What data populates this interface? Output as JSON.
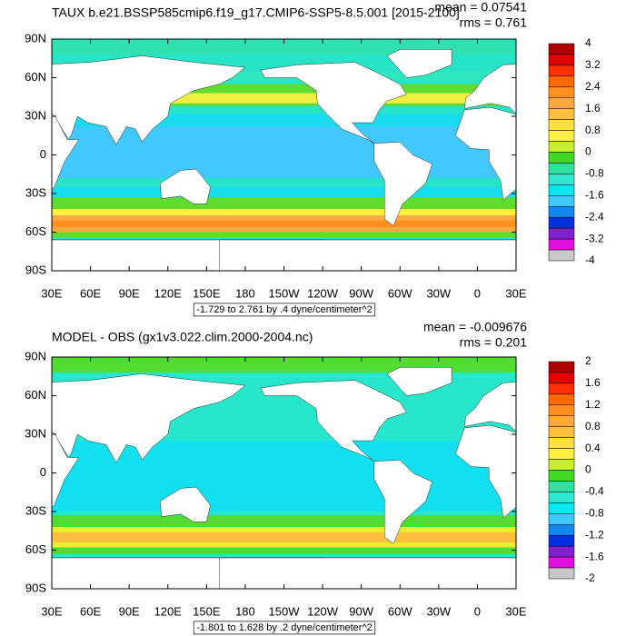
{
  "panels": [
    {
      "title": "TAUX b.e21.BSSP585cmip6.f19_g17.CMIP6-SSP5-8.5.001 [2015-2100]",
      "mean": "mean = 0.07541",
      "rms": "rms = 0.761",
      "lat_labels": [
        "90N",
        "60N",
        "30N",
        "0",
        "30S",
        "60S",
        "90S"
      ],
      "lon_labels": [
        "30E",
        "60E",
        "90E",
        "120E",
        "150E",
        "180",
        "150W",
        "120W",
        "90W",
        "60W",
        "30W",
        "0",
        "30E"
      ],
      "info": "-1.729 to 2.761 by .4 dyne/centimeter^2",
      "colorbar": {
        "labels": [
          "4",
          "3.2",
          "2.4",
          "1.6",
          "0.8",
          "0",
          "-0.8",
          "-1.6",
          "-2.4",
          "-3.2",
          "-4"
        ],
        "colors": [
          "#b00000",
          "#e00000",
          "#ff3000",
          "#ff6a00",
          "#ff9020",
          "#ffa840",
          "#ffc040",
          "#ffe040",
          "#fff040",
          "#c8ee30",
          "#40d820",
          "#30e0a0",
          "#30e8d0",
          "#00e8f0",
          "#40c8ff",
          "#1088f0",
          "#0030e0",
          "#8020d0",
          "#e010e0",
          "#c8c8c8"
        ]
      }
    },
    {
      "title": "MODEL - OBS (gx1v3.022.clim.2000-2004.nc)",
      "mean": "mean = -0.009676",
      "rms": "rms = 0.201",
      "lat_labels": [
        "90N",
        "60N",
        "30N",
        "0",
        "30S",
        "60S",
        "90S"
      ],
      "lon_labels": [
        "30E",
        "60E",
        "90E",
        "120E",
        "150E",
        "180",
        "150W",
        "120W",
        "90W",
        "60W",
        "30W",
        "0",
        "30E"
      ],
      "info": "-1.801 to 1.628 by .2 dyne/centimeter^2",
      "colorbar": {
        "labels": [
          "2",
          "1.6",
          "1.2",
          "0.8",
          "0.4",
          "0",
          "-0.4",
          "-0.8",
          "-1.2",
          "-1.6",
          "-2"
        ],
        "colors": [
          "#b00000",
          "#e00000",
          "#ff3000",
          "#ff6a00",
          "#ff9020",
          "#ffa840",
          "#ffc040",
          "#ffe040",
          "#fff040",
          "#c8ee30",
          "#40d820",
          "#30e0a0",
          "#30e8d0",
          "#00e8f0",
          "#40c8ff",
          "#1088f0",
          "#0030e0",
          "#8020d0",
          "#e010e0",
          "#c8c8c8"
        ]
      }
    }
  ]
}
